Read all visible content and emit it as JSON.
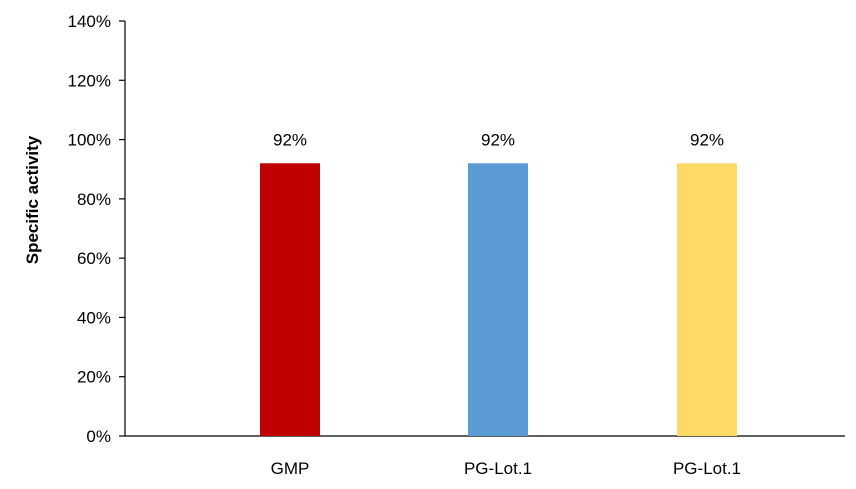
{
  "chart_data": {
    "type": "bar",
    "title": "",
    "xlabel": "",
    "ylabel": "Specific activity",
    "ylim": [
      0,
      1.4
    ],
    "yticks": [
      0,
      0.2,
      0.4,
      0.6,
      0.8,
      1.0,
      1.2,
      1.4
    ],
    "ytick_labels": [
      "0%",
      "20%",
      "40%",
      "60%",
      "80%",
      "100%",
      "120%",
      "140%"
    ],
    "categories": [
      "GMP",
      "PG-Lot.1",
      "PG-Lot.1"
    ],
    "values": [
      0.92,
      0.92,
      0.92
    ],
    "data_labels": [
      "92%",
      "92%",
      "92%"
    ],
    "colors": [
      "#c00000",
      "#5b9bd5",
      "#ffd966"
    ],
    "axis_color": "#000000",
    "grid": false,
    "legend": "none"
  }
}
